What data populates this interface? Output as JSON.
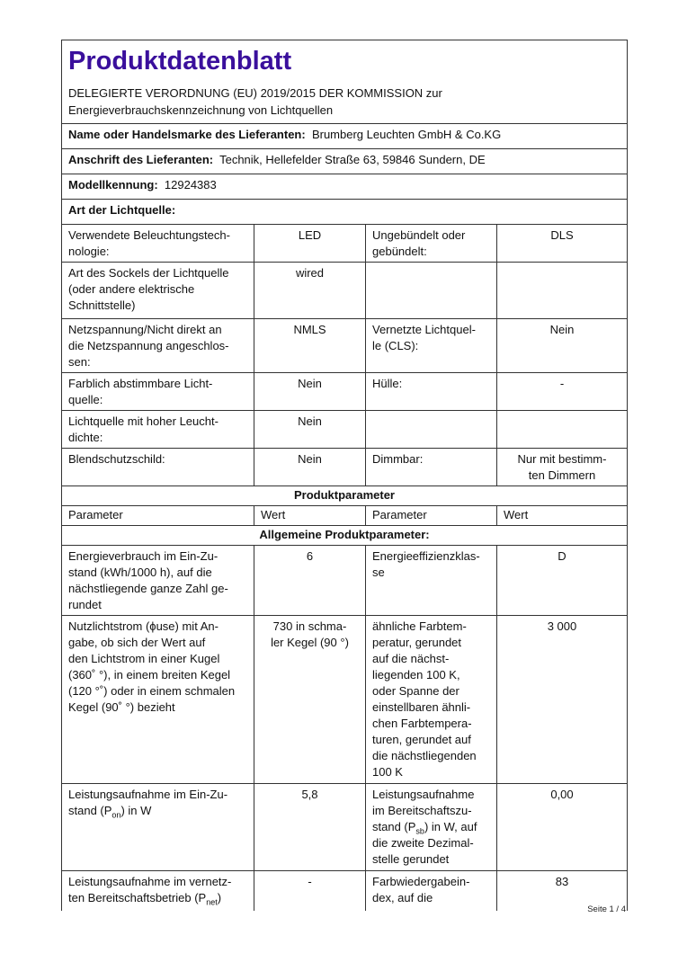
{
  "title": "Produktdatenblatt",
  "subtitle": "DELEGIERTE VERORDNUNG (EU) 2019/2015 DER KOMMISSION zur\nEnergieverbrauchskennzeichnung von Lichtquellen",
  "supplier": {
    "label": "Name oder Handelsmarke des Lieferanten:",
    "value": "Brumberg Leuchten GmbH & Co.KG"
  },
  "address": {
    "label": "Anschrift des Lieferanten:",
    "value": "Technik, Hellefelder Straße 63, 59846 Sundern, DE"
  },
  "model": {
    "label": "Modellkennung:",
    "value": "12924383"
  },
  "light_source_type": "Art der Lichtquelle:",
  "type_rows": [
    {
      "p1": "Verwendete Beleuchtungstech-\nnologie:",
      "v1": "LED",
      "p2": "Ungebündelt    oder\ngebündelt:",
      "v2": "DLS"
    },
    {
      "p1": "Art des Sockels der Lichtquelle\n(oder    andere    elektrische\nSchnittstelle)",
      "v1": "wired",
      "p2": "",
      "v2": ""
    },
    {
      "p1": "Netzspannung/Nicht direkt an\ndie Netzspannung angeschlos-\nsen:",
      "v1": "NMLS",
      "p2": "Vernetzte Lichtquel-\nle (CLS):",
      "v2": "Nein"
    },
    {
      "p1": "Farblich    abstimmbare    Licht-\nquelle:",
      "v1": "Nein",
      "p2": "Hülle:",
      "v2": "-"
    },
    {
      "p1": "Lichtquelle mit hoher Leucht-\ndichte:",
      "v1": "Nein",
      "p2": "",
      "v2": ""
    },
    {
      "p1": "Blendschutzschild:",
      "v1": "Nein",
      "p2": "Dimmbar:",
      "v2": "Nur mit bestimm-\nten Dimmern"
    }
  ],
  "product_params_heading": "Produktparameter",
  "columns": [
    "Parameter",
    "Wert",
    "Parameter",
    "Wert"
  ],
  "general_heading": "Allgemeine Produktparameter:",
  "params": [
    {
      "p1": "Energieverbrauch   im   Ein-Zu-\nstand  (kWh/1000  h),  auf  die\nnächstliegende ganze Zahl ge-\nrundet",
      "v1": "6",
      "p2": "Energieeffizienzklas-\nse",
      "v2": "D"
    },
    {
      "p1": "Nutzlichtstrom (ϕuse) mit An-\ngabe,  ob  sich  der  Wert  auf\nden Lichtstrom in einer Kugel\n(360˚ °), in einem breiten Kegel\n(120 °˚) oder in einem schmalen\nKegel (90˚ °) bezieht",
      "v1": "730 in schma-\nler Kegel (90 °)",
      "p2": "ähnliche      Farbtem-\nperatur,    gerundet\nauf     die     nächst-\nliegenden    100    K,\noder    Spanne    der\neinstellbaren  ähnli-\nchen   Farbtempera-\nturen, gerundet auf\ndie nächstliegenden\n100 K",
      "v2": "3 000"
    }
  ],
  "power_row": {
    "p1_a": "Leistungsaufnahme   im   Ein-Zu-\nstand (P",
    "p1_sub": "on",
    "p1_b": ") in W",
    "v1": "5,8",
    "p2_a": "Leistungsaufnahme\nim   Bereitschaftszu-\nstand (P",
    "p2_sub": "sb",
    "p2_b": ") in W, auf\ndie zweite Dezimal-\nstelle gerundet",
    "v2": "0,00"
  },
  "net_row": {
    "p1_a": "Leistungsaufnahme im vernetz-\nten  Bereitschaftsbetrieb  (P",
    "p1_sub": "net",
    "p1_b": ")",
    "v1": "-",
    "p2": "Farbwiedergabein-\ndex,        auf        die",
    "v2": "83"
  },
  "footer": "Seite 1 / 4"
}
